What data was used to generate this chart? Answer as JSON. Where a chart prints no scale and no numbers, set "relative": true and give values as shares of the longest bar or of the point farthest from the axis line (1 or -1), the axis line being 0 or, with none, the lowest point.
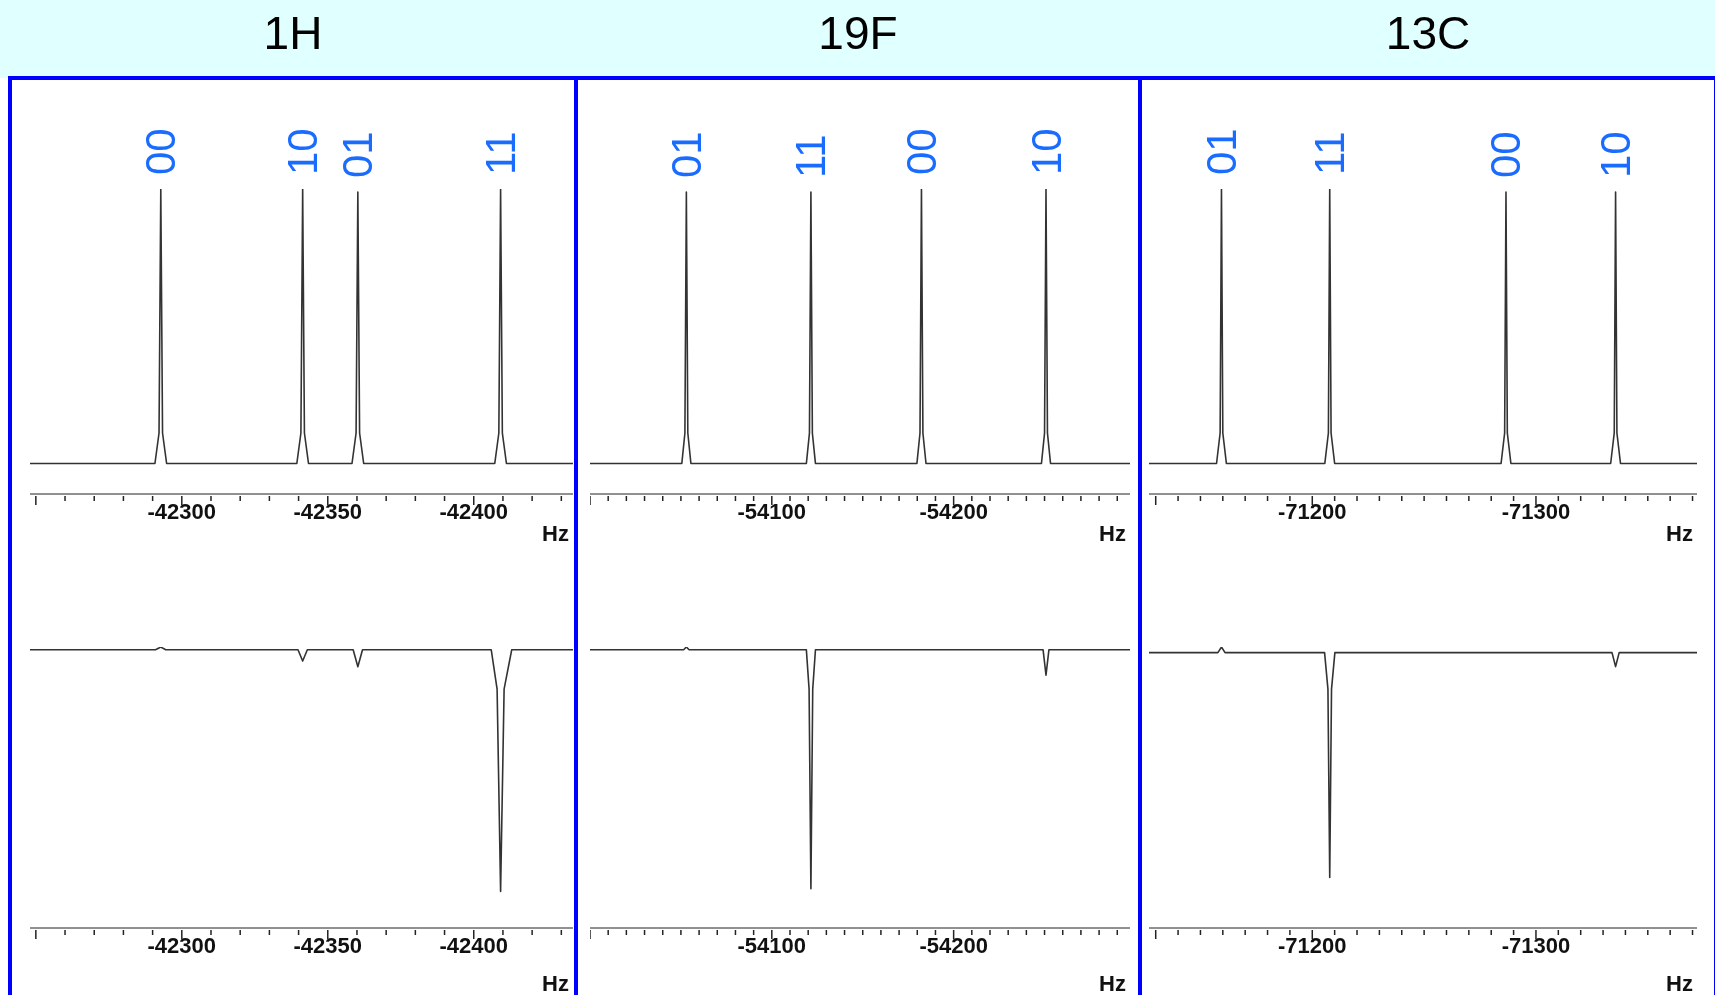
{
  "chart_data": [
    {
      "type": "line",
      "title": "1H",
      "xlabel": "Hz",
      "relative": true,
      "color": "#333333",
      "xlim": [
        -42248,
        -42434
      ],
      "xticks": [
        {
          "value": -42250,
          "label": null
        },
        {
          "value": -42260,
          "label": null
        },
        {
          "value": -42270,
          "label": null
        },
        {
          "value": -42280,
          "label": null
        },
        {
          "value": -42290,
          "label": null
        },
        -42300,
        {
          "value": -42310,
          "label": null
        },
        {
          "value": -42320,
          "label": null
        },
        {
          "value": -42330,
          "label": null
        },
        {
          "value": -42340,
          "label": null
        },
        -42350,
        {
          "value": -42360,
          "label": null
        },
        {
          "value": -42370,
          "label": null
        },
        {
          "value": -42380,
          "label": null
        },
        {
          "value": -42390,
          "label": null
        },
        -42400,
        {
          "value": -42410,
          "label": null
        },
        {
          "value": -42420,
          "label": null
        },
        {
          "value": -42430,
          "label": null
        }
      ],
      "x": [
        -42248,
        -42290.8,
        -42292.2,
        -42292.8,
        -42293.4,
        -42294.8,
        -42339.4,
        -42340.8,
        -42341.4,
        -42342,
        -42343.4,
        -42358.3,
        -42359.7,
        -42360.3,
        -42360.9,
        -42362.3,
        -42407.2,
        -42408.6,
        -42409.2,
        -42409.8,
        -42411.2,
        -42434
      ],
      "values": [
        0.1,
        0.1,
        0.2,
        1,
        0.2,
        0.1,
        0.1,
        0.2,
        1,
        0.2,
        0.1,
        0.1,
        0.2,
        0.99,
        0.2,
        0.1,
        0.1,
        0.2,
        1,
        0.2,
        0.1,
        0.1
      ],
      "annotations": [
        {
          "text": "00",
          "x": -42292.8,
          "y": 1
        },
        {
          "text": "10",
          "x": -42341.4,
          "y": 1
        },
        {
          "text": "01",
          "x": -42360.3,
          "y": 0.99
        },
        {
          "text": "11",
          "x": -42409.2,
          "y": 1
        }
      ]
    },
    {
      "type": "line",
      "title": "19F",
      "xlabel": "Hz",
      "relative": true,
      "color": "#333333",
      "xlim": [
        -54000,
        -54297
      ],
      "xticks": [
        {
          "value": -54000,
          "label": null
        },
        {
          "value": -54010,
          "label": null
        },
        {
          "value": -54020,
          "label": null
        },
        {
          "value": -54030,
          "label": null
        },
        {
          "value": -54040,
          "label": null
        },
        {
          "value": -54050,
          "label": null
        },
        {
          "value": -54060,
          "label": null
        },
        {
          "value": -54070,
          "label": null
        },
        {
          "value": -54080,
          "label": null
        },
        {
          "value": -54090,
          "label": null
        },
        -54100,
        {
          "value": -54110,
          "label": null
        },
        {
          "value": -54120,
          "label": null
        },
        {
          "value": -54130,
          "label": null
        },
        {
          "value": -54140,
          "label": null
        },
        {
          "value": -54150,
          "label": null
        },
        {
          "value": -54160,
          "label": null
        },
        {
          "value": -54170,
          "label": null
        },
        {
          "value": -54180,
          "label": null
        },
        {
          "value": -54190,
          "label": null
        },
        -54200,
        {
          "value": -54210,
          "label": null
        },
        {
          "value": -54220,
          "label": null
        },
        {
          "value": -54230,
          "label": null
        },
        {
          "value": -54240,
          "label": null
        },
        {
          "value": -54250,
          "label": null
        },
        {
          "value": -54260,
          "label": null
        },
        {
          "value": -54270,
          "label": null
        },
        {
          "value": -54280,
          "label": null
        },
        {
          "value": -54290,
          "label": null
        }
      ],
      "x": [
        -54000,
        -54050.5,
        -54052.2,
        -54053,
        -54053.8,
        -54055.5,
        -54119,
        -54120.7,
        -54121.5,
        -54122.3,
        -54124,
        -54179.8,
        -54181.5,
        -54182.3,
        -54183.1,
        -54184.8,
        -54248.3,
        -54250,
        -54250.8,
        -54251.6,
        -54253.3,
        -54297
      ],
      "values": [
        0.1,
        0.1,
        0.2,
        0.99,
        0.2,
        0.1,
        0.1,
        0.2,
        0.99,
        0.2,
        0.1,
        0.1,
        0.2,
        1,
        0.2,
        0.1,
        0.1,
        0.2,
        1,
        0.2,
        0.1,
        0.1
      ],
      "annotations": [
        {
          "text": "01",
          "x": -54053,
          "y": 0.99
        },
        {
          "text": "11",
          "x": -54121.5,
          "y": 0.99
        },
        {
          "text": "00",
          "x": -54182.3,
          "y": 1
        },
        {
          "text": "10",
          "x": -54250.8,
          "y": 1
        }
      ]
    },
    {
      "type": "line",
      "title": "13C",
      "xlabel": "Hz",
      "relative": true,
      "color": "#333333",
      "xlim": [
        -71127,
        -71372
      ],
      "xticks": [
        {
          "value": -71130,
          "label": null
        },
        {
          "value": -71140,
          "label": null
        },
        {
          "value": -71150,
          "label": null
        },
        {
          "value": -71160,
          "label": null
        },
        {
          "value": -71170,
          "label": null
        },
        {
          "value": -71180,
          "label": null
        },
        {
          "value": -71190,
          "label": null
        },
        -71200,
        {
          "value": -71210,
          "label": null
        },
        {
          "value": -71220,
          "label": null
        },
        {
          "value": -71230,
          "label": null
        },
        {
          "value": -71240,
          "label": null
        },
        {
          "value": -71250,
          "label": null
        },
        {
          "value": -71260,
          "label": null
        },
        {
          "value": -71270,
          "label": null
        },
        {
          "value": -71280,
          "label": null
        },
        {
          "value": -71290,
          "label": null
        },
        -71300,
        {
          "value": -71310,
          "label": null
        },
        {
          "value": -71320,
          "label": null
        },
        {
          "value": -71330,
          "label": null
        },
        {
          "value": -71340,
          "label": null
        },
        {
          "value": -71350,
          "label": null
        },
        {
          "value": -71360,
          "label": null
        },
        {
          "value": -71370,
          "label": null
        }
      ],
      "x": [
        -71127,
        -71157.2,
        -71158.8,
        -71159.4,
        -71160,
        -71161.6,
        -71205.6,
        -71207.2,
        -71207.8,
        -71208.4,
        -71210,
        -71284.4,
        -71286,
        -71286.6,
        -71287.2,
        -71288.8,
        -71333.4,
        -71335,
        -71335.6,
        -71336.2,
        -71337.8,
        -71372
      ],
      "values": [
        0.1,
        0.1,
        0.2,
        1,
        0.2,
        0.1,
        0.1,
        0.2,
        1,
        0.2,
        0.1,
        0.1,
        0.2,
        0.99,
        0.2,
        0.1,
        0.1,
        0.2,
        0.99,
        0.2,
        0.1,
        0.1
      ],
      "annotations": [
        {
          "text": "01",
          "x": -71159.4,
          "y": 1
        },
        {
          "text": "11",
          "x": -71207.8,
          "y": 1
        },
        {
          "text": "00",
          "x": -71286.6,
          "y": 0.99
        },
        {
          "text": "10",
          "x": -71335.6,
          "y": 0.99
        }
      ]
    },
    {
      "type": "line",
      "xlabel": "Hz",
      "relative": true,
      "color": "#333333",
      "xlim": [
        -42248,
        -42434
      ],
      "xticks": [
        {
          "value": -42250,
          "label": null
        },
        {
          "value": -42260,
          "label": null
        },
        {
          "value": -42270,
          "label": null
        },
        {
          "value": -42280,
          "label": null
        },
        {
          "value": -42290,
          "label": null
        },
        -42300,
        {
          "value": -42310,
          "label": null
        },
        {
          "value": -42320,
          "label": null
        },
        {
          "value": -42330,
          "label": null
        },
        {
          "value": -42340,
          "label": null
        },
        -42350,
        {
          "value": -42360,
          "label": null
        },
        {
          "value": -42370,
          "label": null
        },
        {
          "value": -42380,
          "label": null
        },
        {
          "value": -42390,
          "label": null
        },
        -42400,
        {
          "value": -42410,
          "label": null
        },
        {
          "value": -42420,
          "label": null
        },
        {
          "value": -42430,
          "label": null
        }
      ],
      "x": [
        -42248,
        -42291,
        -42292.8,
        -42294.5,
        -42339.8,
        -42341.4,
        -42343,
        -42358.7,
        -42360.3,
        -42361.9,
        -42406,
        -42408,
        -42409.2,
        -42410.4,
        -42413,
        -42434
      ],
      "values": [
        0.99,
        0.99,
        1,
        0.99,
        0.99,
        0.95,
        0.99,
        0.99,
        0.93,
        0.99,
        0.99,
        0.85,
        0.13,
        0.85,
        0.99,
        0.99
      ]
    },
    {
      "type": "line",
      "xlabel": "Hz",
      "relative": true,
      "color": "#333333",
      "xlim": [
        -54000,
        -54297
      ],
      "xticks": [
        {
          "value": -54000,
          "label": null
        },
        {
          "value": -54010,
          "label": null
        },
        {
          "value": -54020,
          "label": null
        },
        {
          "value": -54030,
          "label": null
        },
        {
          "value": -54040,
          "label": null
        },
        {
          "value": -54050,
          "label": null
        },
        {
          "value": -54060,
          "label": null
        },
        {
          "value": -54070,
          "label": null
        },
        {
          "value": -54080,
          "label": null
        },
        {
          "value": -54090,
          "label": null
        },
        -54100,
        {
          "value": -54110,
          "label": null
        },
        {
          "value": -54120,
          "label": null
        },
        {
          "value": -54130,
          "label": null
        },
        {
          "value": -54140,
          "label": null
        },
        {
          "value": -54150,
          "label": null
        },
        {
          "value": -54160,
          "label": null
        },
        {
          "value": -54170,
          "label": null
        },
        {
          "value": -54180,
          "label": null
        },
        {
          "value": -54190,
          "label": null
        },
        -54200,
        {
          "value": -54210,
          "label": null
        },
        {
          "value": -54220,
          "label": null
        },
        {
          "value": -54230,
          "label": null
        },
        {
          "value": -54240,
          "label": null
        },
        {
          "value": -54250,
          "label": null
        },
        {
          "value": -54260,
          "label": null
        },
        {
          "value": -54270,
          "label": null
        },
        {
          "value": -54280,
          "label": null
        },
        {
          "value": -54290,
          "label": null
        }
      ],
      "x": [
        -54000,
        -54051.5,
        -54053,
        -54054.5,
        -54119,
        -54120.5,
        -54121.5,
        -54122.5,
        -54124,
        -54249.2,
        -54250.8,
        -54252.4,
        -54297
      ],
      "values": [
        0.99,
        0.99,
        1,
        0.99,
        0.99,
        0.85,
        0.14,
        0.85,
        0.99,
        0.99,
        0.9,
        0.99,
        0.99
      ]
    },
    {
      "type": "line",
      "xlabel": "Hz",
      "relative": true,
      "color": "#333333",
      "xlim": [
        -71127,
        -71372
      ],
      "xticks": [
        {
          "value": -71130,
          "label": null
        },
        {
          "value": -71140,
          "label": null
        },
        {
          "value": -71150,
          "label": null
        },
        {
          "value": -71160,
          "label": null
        },
        {
          "value": -71170,
          "label": null
        },
        {
          "value": -71180,
          "label": null
        },
        {
          "value": -71190,
          "label": null
        },
        -71200,
        {
          "value": -71210,
          "label": null
        },
        {
          "value": -71220,
          "label": null
        },
        {
          "value": -71230,
          "label": null
        },
        {
          "value": -71240,
          "label": null
        },
        {
          "value": -71250,
          "label": null
        },
        {
          "value": -71260,
          "label": null
        },
        {
          "value": -71270,
          "label": null
        },
        {
          "value": -71280,
          "label": null
        },
        {
          "value": -71290,
          "label": null
        },
        -71300,
        {
          "value": -71310,
          "label": null
        },
        {
          "value": -71320,
          "label": null
        },
        {
          "value": -71330,
          "label": null
        },
        {
          "value": -71340,
          "label": null
        },
        {
          "value": -71350,
          "label": null
        },
        {
          "value": -71360,
          "label": null
        },
        {
          "value": -71370,
          "label": null
        }
      ],
      "x": [
        -71127,
        -71157.8,
        -71159.4,
        -71161,
        -71205.5,
        -71207,
        -71207.8,
        -71208.6,
        -71210.1,
        -71334,
        -71335.6,
        -71337.2,
        -71372
      ],
      "values": [
        0.98,
        0.98,
        1,
        0.98,
        0.98,
        0.85,
        0.18,
        0.85,
        0.98,
        0.98,
        0.93,
        0.98,
        0.98
      ]
    }
  ]
}
